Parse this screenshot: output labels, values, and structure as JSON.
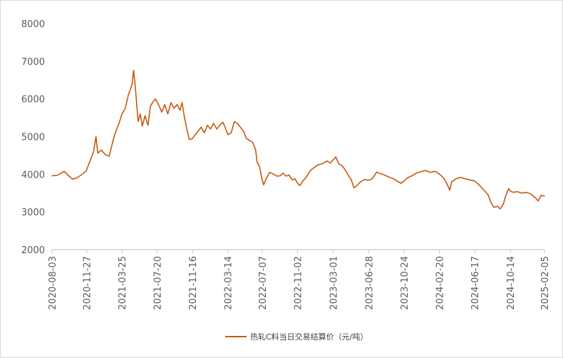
{
  "chart_data": {
    "type": "line",
    "title": "",
    "xlabel": "",
    "ylabel": "",
    "ylim": [
      2000,
      8000
    ],
    "y_ticks": [
      2000,
      3000,
      4000,
      5000,
      6000,
      7000,
      8000
    ],
    "x_range": [
      "2020-08-03",
      "2025-02-05"
    ],
    "x_tick_labels": [
      "2020-08-03",
      "2020-11-27",
      "2021-03-25",
      "2021-07-20",
      "2021-11-16",
      "2022-03-14",
      "2022-07-07",
      "2022-11-02",
      "2023-03-01",
      "2023-06-28",
      "2023-10-24",
      "2024-02-20",
      "2024-06-17",
      "2024-10-14",
      "2025-02-05"
    ],
    "grid": false,
    "legend_position": "bottom",
    "series": [
      {
        "name": "热轧C料当日交易结算价（元/吨）",
        "color": "#c55a11",
        "points": [
          [
            "2020-08-03",
            3960
          ],
          [
            "2020-08-20",
            3970
          ],
          [
            "2020-09-05",
            4040
          ],
          [
            "2020-09-12",
            4080
          ],
          [
            "2020-09-25",
            3980
          ],
          [
            "2020-10-10",
            3870
          ],
          [
            "2020-10-25",
            3900
          ],
          [
            "2020-11-10",
            3990
          ],
          [
            "2020-11-25",
            4080
          ],
          [
            "2020-12-08",
            4350
          ],
          [
            "2020-12-20",
            4600
          ],
          [
            "2020-12-28",
            5000
          ],
          [
            "2021-01-03",
            4560
          ],
          [
            "2021-01-15",
            4640
          ],
          [
            "2021-01-28",
            4520
          ],
          [
            "2021-02-10",
            4480
          ],
          [
            "2021-02-25",
            4950
          ],
          [
            "2021-03-05",
            5150
          ],
          [
            "2021-03-15",
            5350
          ],
          [
            "2021-03-25",
            5600
          ],
          [
            "2021-04-05",
            5750
          ],
          [
            "2021-04-15",
            6100
          ],
          [
            "2021-04-20",
            6200
          ],
          [
            "2021-04-28",
            6400
          ],
          [
            "2021-05-03",
            6760
          ],
          [
            "2021-05-07",
            6450
          ],
          [
            "2021-05-12",
            6000
          ],
          [
            "2021-05-18",
            5400
          ],
          [
            "2021-05-25",
            5600
          ],
          [
            "2021-06-01",
            5280
          ],
          [
            "2021-06-10",
            5550
          ],
          [
            "2021-06-20",
            5300
          ],
          [
            "2021-06-28",
            5800
          ],
          [
            "2021-07-05",
            5900
          ],
          [
            "2021-07-15",
            6000
          ],
          [
            "2021-07-25",
            5850
          ],
          [
            "2021-08-05",
            5650
          ],
          [
            "2021-08-15",
            5850
          ],
          [
            "2021-08-25",
            5600
          ],
          [
            "2021-09-05",
            5900
          ],
          [
            "2021-09-15",
            5750
          ],
          [
            "2021-09-25",
            5850
          ],
          [
            "2021-10-05",
            5700
          ],
          [
            "2021-10-12",
            5900
          ],
          [
            "2021-10-20",
            5500
          ],
          [
            "2021-10-28",
            5200
          ],
          [
            "2021-11-05",
            4920
          ],
          [
            "2021-11-16",
            4950
          ],
          [
            "2021-11-25",
            5050
          ],
          [
            "2021-12-05",
            5150
          ],
          [
            "2021-12-15",
            5250
          ],
          [
            "2021-12-25",
            5100
          ],
          [
            "2022-01-05",
            5300
          ],
          [
            "2022-01-15",
            5200
          ],
          [
            "2022-01-25",
            5350
          ],
          [
            "2022-02-05",
            5200
          ],
          [
            "2022-02-15",
            5300
          ],
          [
            "2022-02-25",
            5380
          ],
          [
            "2022-03-05",
            5250
          ],
          [
            "2022-03-14",
            5050
          ],
          [
            "2022-03-25",
            5100
          ],
          [
            "2022-04-05",
            5400
          ],
          [
            "2022-04-15",
            5350
          ],
          [
            "2022-04-25",
            5250
          ],
          [
            "2022-05-05",
            5150
          ],
          [
            "2022-05-15",
            4950
          ],
          [
            "2022-05-25",
            4900
          ],
          [
            "2022-06-05",
            4850
          ],
          [
            "2022-06-15",
            4650
          ],
          [
            "2022-06-20",
            4320
          ],
          [
            "2022-06-28",
            4200
          ],
          [
            "2022-07-07",
            3850
          ],
          [
            "2022-07-12",
            3720
          ],
          [
            "2022-07-20",
            3880
          ],
          [
            "2022-08-01",
            4050
          ],
          [
            "2022-08-15",
            4000
          ],
          [
            "2022-08-25",
            3950
          ],
          [
            "2022-09-05",
            3960
          ],
          [
            "2022-09-15",
            4030
          ],
          [
            "2022-09-25",
            3950
          ],
          [
            "2022-10-05",
            3980
          ],
          [
            "2022-10-15",
            3850
          ],
          [
            "2022-10-25",
            3880
          ],
          [
            "2022-11-02",
            3760
          ],
          [
            "2022-11-10",
            3700
          ],
          [
            "2022-11-20",
            3820
          ],
          [
            "2022-12-01",
            3920
          ],
          [
            "2022-12-15",
            4100
          ],
          [
            "2022-12-28",
            4180
          ],
          [
            "2023-01-10",
            4250
          ],
          [
            "2023-01-25",
            4280
          ],
          [
            "2023-02-08",
            4350
          ],
          [
            "2023-02-20",
            4300
          ],
          [
            "2023-03-01",
            4380
          ],
          [
            "2023-03-10",
            4460
          ],
          [
            "2023-03-20",
            4280
          ],
          [
            "2023-04-01",
            4220
          ],
          [
            "2023-04-12",
            4100
          ],
          [
            "2023-04-20",
            3980
          ],
          [
            "2023-05-01",
            3850
          ],
          [
            "2023-05-10",
            3640
          ],
          [
            "2023-05-20",
            3700
          ],
          [
            "2023-06-01",
            3800
          ],
          [
            "2023-06-15",
            3860
          ],
          [
            "2023-06-28",
            3840
          ],
          [
            "2023-07-10",
            3880
          ],
          [
            "2023-07-25",
            4060
          ],
          [
            "2023-08-05",
            4020
          ],
          [
            "2023-08-20",
            3980
          ],
          [
            "2023-09-05",
            3920
          ],
          [
            "2023-09-20",
            3880
          ],
          [
            "2023-10-05",
            3800
          ],
          [
            "2023-10-15",
            3760
          ],
          [
            "2023-10-24",
            3820
          ],
          [
            "2023-11-05",
            3900
          ],
          [
            "2023-11-20",
            3960
          ],
          [
            "2023-12-05",
            4030
          ],
          [
            "2023-12-20",
            4070
          ],
          [
            "2024-01-05",
            4100
          ],
          [
            "2024-01-20",
            4050
          ],
          [
            "2024-02-05",
            4080
          ],
          [
            "2024-02-20",
            4000
          ],
          [
            "2024-03-05",
            3900
          ],
          [
            "2024-03-15",
            3760
          ],
          [
            "2024-03-25",
            3580
          ],
          [
            "2024-04-01",
            3800
          ],
          [
            "2024-04-15",
            3880
          ],
          [
            "2024-05-01",
            3920
          ],
          [
            "2024-05-15",
            3880
          ],
          [
            "2024-06-01",
            3850
          ],
          [
            "2024-06-17",
            3820
          ],
          [
            "2024-07-01",
            3720
          ],
          [
            "2024-07-15",
            3600
          ],
          [
            "2024-08-01",
            3450
          ],
          [
            "2024-08-10",
            3250
          ],
          [
            "2024-08-20",
            3120
          ],
          [
            "2024-09-01",
            3150
          ],
          [
            "2024-09-10",
            3080
          ],
          [
            "2024-09-20",
            3200
          ],
          [
            "2024-09-28",
            3420
          ],
          [
            "2024-10-08",
            3620
          ],
          [
            "2024-10-14",
            3550
          ],
          [
            "2024-10-25",
            3520
          ],
          [
            "2024-11-05",
            3540
          ],
          [
            "2024-11-20",
            3500
          ],
          [
            "2024-12-05",
            3520
          ],
          [
            "2024-12-20",
            3480
          ],
          [
            "2025-01-05",
            3380
          ],
          [
            "2025-01-15",
            3290
          ],
          [
            "2025-01-25",
            3440
          ],
          [
            "2025-02-05",
            3420
          ]
        ]
      }
    ]
  }
}
